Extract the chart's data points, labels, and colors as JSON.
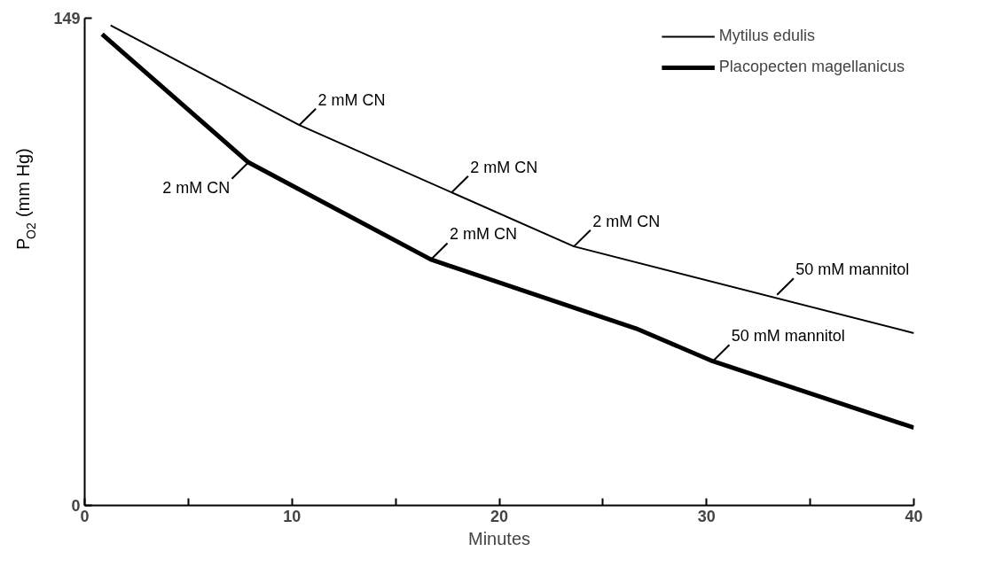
{
  "chart_data": {
    "type": "line",
    "xlabel": "Minutes",
    "ylabel": "P$_{O2}$ (mm Hg)",
    "xlim": [
      0,
      40
    ],
    "ylim": [
      0,
      149
    ],
    "xticks": [
      0,
      {
        "value": 5,
        "label": null
      },
      10,
      {
        "value": 15,
        "label": null
      },
      20,
      {
        "value": 25,
        "label": null
      },
      30,
      {
        "value": 35,
        "label": null
      },
      40
    ],
    "yticks": [
      0,
      149
    ],
    "grid": false,
    "legend": "top right",
    "marker": "none",
    "series": [
      {
        "name": "Mytilus edulis",
        "color": "#000000",
        "line_style": "solid",
        "x": [
          1.25,
          10.35,
          23.6,
          40
        ],
        "values": [
          146.8,
          116.3,
          79.2,
          52.7
        ]
      },
      {
        "name": "Placopecten magellanicus",
        "color": "#000000",
        "line_style": "solid",
        "x": [
          0.84,
          7.9,
          16.7,
          26.6,
          30.3,
          40
        ],
        "values": [
          144.1,
          104.9,
          75.2,
          54.1,
          44.1,
          23.8
        ]
      }
    ],
    "annotations": [
      {
        "text": "2 mM CN",
        "x": 10.35,
        "y": 116.3
      },
      {
        "text": "2 mM CN",
        "x": 17.7,
        "y": 95.7
      },
      {
        "text": "2 mM CN",
        "x": 23.6,
        "y": 79.2
      },
      {
        "text": "50 mM mannitol",
        "x": 33.4,
        "y": 64.4
      },
      {
        "text": "2 mM CN",
        "x": 7.9,
        "y": 104.9
      },
      {
        "text": "2 mM CN",
        "x": 16.7,
        "y": 75.2
      },
      {
        "text": "50 mM mannitol",
        "x": 30.3,
        "y": 44.1
      }
    ]
  }
}
